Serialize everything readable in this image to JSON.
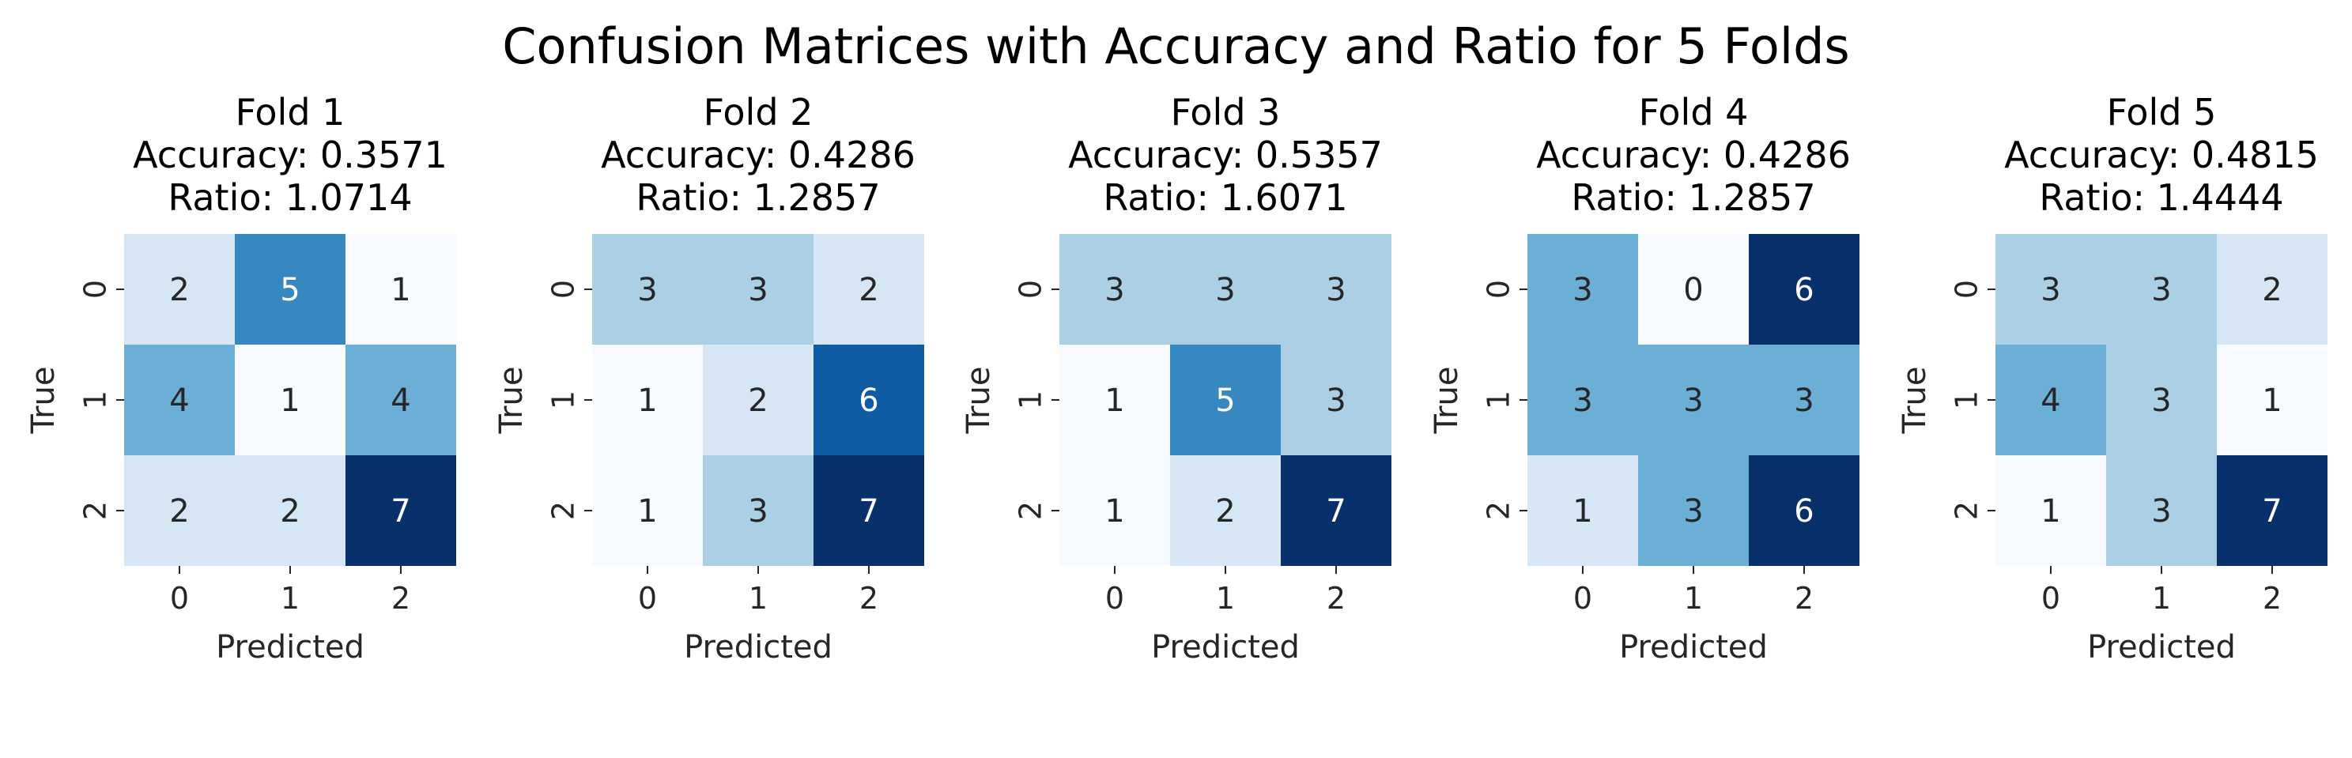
{
  "chart_data": {
    "type": "heatmap",
    "title": "Confusion Matrices with Accuracy and Ratio for 5 Folds",
    "colormap": "Blues",
    "color_scale": "per-panel",
    "colorbar": false,
    "grid": false,
    "panels": [
      {
        "title_lines": [
          "Fold 1",
          "Accuracy: 0.3571",
          "Ratio: 1.0714"
        ],
        "xlabel": "Predicted",
        "ylabel": "True",
        "x_ticks": [
          "0",
          "1",
          "2"
        ],
        "y_ticks": [
          "0",
          "1",
          "2"
        ],
        "matrix": [
          [
            2,
            5,
            1
          ],
          [
            4,
            1,
            4
          ],
          [
            2,
            2,
            7
          ]
        ]
      },
      {
        "title_lines": [
          "Fold 2",
          "Accuracy: 0.4286",
          "Ratio: 1.2857"
        ],
        "xlabel": "Predicted",
        "ylabel": "True",
        "x_ticks": [
          "0",
          "1",
          "2"
        ],
        "y_ticks": [
          "0",
          "1",
          "2"
        ],
        "matrix": [
          [
            3,
            3,
            2
          ],
          [
            1,
            2,
            6
          ],
          [
            1,
            3,
            7
          ]
        ]
      },
      {
        "title_lines": [
          "Fold 3",
          "Accuracy: 0.5357",
          "Ratio: 1.6071"
        ],
        "xlabel": "Predicted",
        "ylabel": "True",
        "x_ticks": [
          "0",
          "1",
          "2"
        ],
        "y_ticks": [
          "0",
          "1",
          "2"
        ],
        "matrix": [
          [
            3,
            3,
            3
          ],
          [
            1,
            5,
            3
          ],
          [
            1,
            2,
            7
          ]
        ]
      },
      {
        "title_lines": [
          "Fold 4",
          "Accuracy: 0.4286",
          "Ratio: 1.2857"
        ],
        "xlabel": "Predicted",
        "ylabel": "True",
        "x_ticks": [
          "0",
          "1",
          "2"
        ],
        "y_ticks": [
          "0",
          "1",
          "2"
        ],
        "matrix": [
          [
            3,
            0,
            6
          ],
          [
            3,
            3,
            3
          ],
          [
            1,
            3,
            6
          ]
        ]
      },
      {
        "title_lines": [
          "Fold 5",
          "Accuracy: 0.4815",
          "Ratio: 1.4444"
        ],
        "xlabel": "Predicted",
        "ylabel": "True",
        "x_ticks": [
          "0",
          "1",
          "2"
        ],
        "y_ticks": [
          "0",
          "1",
          "2"
        ],
        "matrix": [
          [
            3,
            3,
            2
          ],
          [
            4,
            3,
            1
          ],
          [
            1,
            3,
            7
          ]
        ]
      }
    ]
  }
}
